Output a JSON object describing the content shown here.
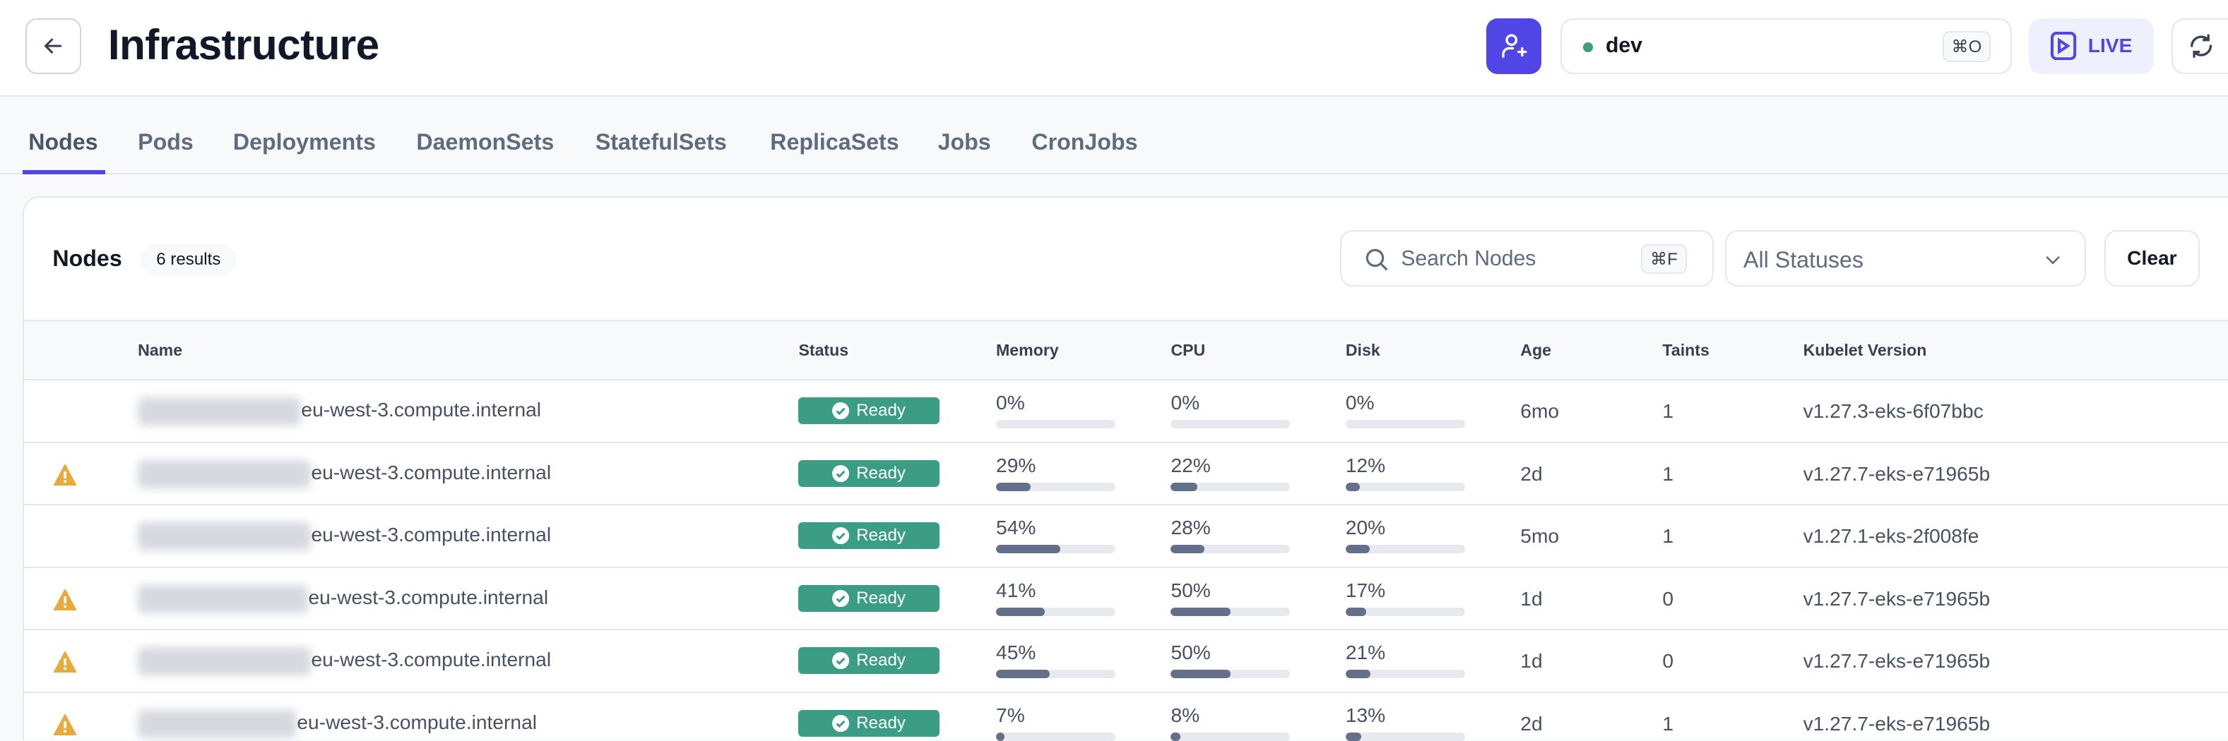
{
  "header": {
    "title": "Infrastructure",
    "context": {
      "name": "dev",
      "shortcut": "⌘O",
      "status_color": "#3b9e84"
    },
    "live_label": "LIVE",
    "accent": "#4f46e5"
  },
  "tabs": [
    {
      "label": "Nodes",
      "active": true
    },
    {
      "label": "Pods"
    },
    {
      "label": "Deployments"
    },
    {
      "label": "DaemonSets"
    },
    {
      "label": "StatefulSets"
    },
    {
      "label": "ReplicaSets"
    },
    {
      "label": "Jobs"
    },
    {
      "label": "CronJobs"
    }
  ],
  "panel": {
    "title": "Nodes",
    "count": "6 results",
    "search_placeholder": "Search Nodes",
    "search_shortcut": "⌘F",
    "status_filter": "All Statuses",
    "clear_label": "Clear"
  },
  "table": {
    "columns": [
      "Name",
      "Status",
      "Memory",
      "CPU",
      "Disk",
      "Age",
      "Taints",
      "Kubelet Version"
    ],
    "rows": [
      {
        "warning": false,
        "name": "eu-west-3.compute.internal",
        "status": "Ready",
        "memory": "0%",
        "cpu": "0%",
        "disk": "0%",
        "age": "6mo",
        "taints": "1",
        "kubelet": "v1.27.3-eks-6f07bbc"
      },
      {
        "warning": true,
        "name": "eu-west-3.compute.internal",
        "status": "Ready",
        "memory": "29%",
        "cpu": "22%",
        "disk": "12%",
        "age": "2d",
        "taints": "1",
        "kubelet": "v1.27.7-eks-e71965b"
      },
      {
        "warning": false,
        "name": "eu-west-3.compute.internal",
        "status": "Ready",
        "memory": "54%",
        "cpu": "28%",
        "disk": "20%",
        "age": "5mo",
        "taints": "1",
        "kubelet": "v1.27.1-eks-2f008fe"
      },
      {
        "warning": true,
        "name": "eu-west-3.compute.internal",
        "status": "Ready",
        "memory": "41%",
        "cpu": "50%",
        "disk": "17%",
        "age": "1d",
        "taints": "0",
        "kubelet": "v1.27.7-eks-e71965b"
      },
      {
        "warning": true,
        "name": "eu-west-3.compute.internal",
        "status": "Ready",
        "memory": "45%",
        "cpu": "50%",
        "disk": "21%",
        "age": "1d",
        "taints": "0",
        "kubelet": "v1.27.7-eks-e71965b"
      },
      {
        "warning": true,
        "name": "eu-west-3.compute.internal",
        "status": "Ready",
        "memory": "7%",
        "cpu": "8%",
        "disk": "13%",
        "age": "2d",
        "taints": "1",
        "kubelet": "v1.27.7-eks-e71965b"
      }
    ]
  }
}
